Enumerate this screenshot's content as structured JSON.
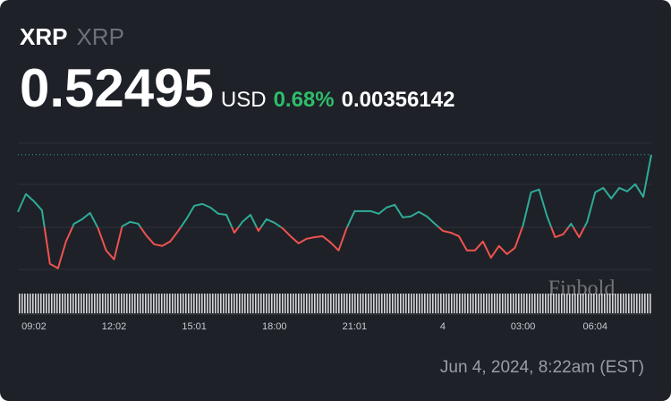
{
  "header": {
    "symbol": "XRP",
    "name": "XRP",
    "price": 0.52495,
    "currency": "USD",
    "change_percent": "0.68%",
    "change": 0.00356142
  },
  "chart_data": {
    "type": "line",
    "categories": [
      null,
      null,
      "09:02",
      null,
      null,
      null,
      null,
      null,
      null,
      null,
      null,
      null,
      "12:02",
      null,
      null,
      null,
      null,
      null,
      null,
      null,
      null,
      null,
      "15:01",
      null,
      null,
      null,
      null,
      null,
      null,
      null,
      null,
      null,
      "18:00",
      null,
      null,
      null,
      null,
      null,
      null,
      null,
      null,
      null,
      "21:01",
      null,
      null,
      null,
      null,
      null,
      null,
      null,
      null,
      null,
      null,
      "4",
      null,
      null,
      null,
      null,
      null,
      null,
      null,
      null,
      null,
      "03:00",
      null,
      null,
      null,
      null,
      null,
      null,
      null,
      null,
      "06:04",
      null,
      null,
      null,
      null,
      null,
      null,
      null
    ],
    "values": [
      0.52214,
      0.52302,
      0.52266,
      0.52222,
      0.51959,
      0.51937,
      0.52069,
      0.52156,
      0.52178,
      0.52209,
      0.52134,
      0.52025,
      0.51981,
      0.52143,
      0.52165,
      0.52156,
      0.52099,
      0.52055,
      0.52047,
      0.52069,
      0.52121,
      0.52178,
      0.52244,
      0.52253,
      0.52236,
      0.52205,
      0.522,
      0.52112,
      0.52165,
      0.522,
      0.52121,
      0.52178,
      0.52161,
      0.52134,
      0.52095,
      0.5206,
      0.52082,
      0.5209,
      0.52095,
      0.52064,
      0.52025,
      0.52134,
      0.52218,
      0.52218,
      0.52218,
      0.52205,
      0.52236,
      0.52249,
      0.52187,
      0.52192,
      0.52214,
      0.52192,
      0.52156,
      0.52121,
      0.52112,
      0.52095,
      0.52025,
      0.52025,
      0.52069,
      0.51989,
      0.52047,
      0.52007,
      0.52038,
      0.52148,
      0.5231,
      0.52324,
      0.52192,
      0.5209,
      0.52104,
      0.52156,
      0.5209,
      0.52165,
      0.5231,
      0.52332,
      0.5228,
      0.52332,
      0.52315,
      0.5235,
      0.52288,
      0.52495
    ],
    "ylim": [
      0.518,
      0.5256
    ],
    "colors": {
      "up": "#2fab98",
      "down": "#ef5350"
    },
    "watermark": "Finbold"
  },
  "footer": {
    "timestamp": "Jun 4, 2024, 8:22am (EST)"
  }
}
